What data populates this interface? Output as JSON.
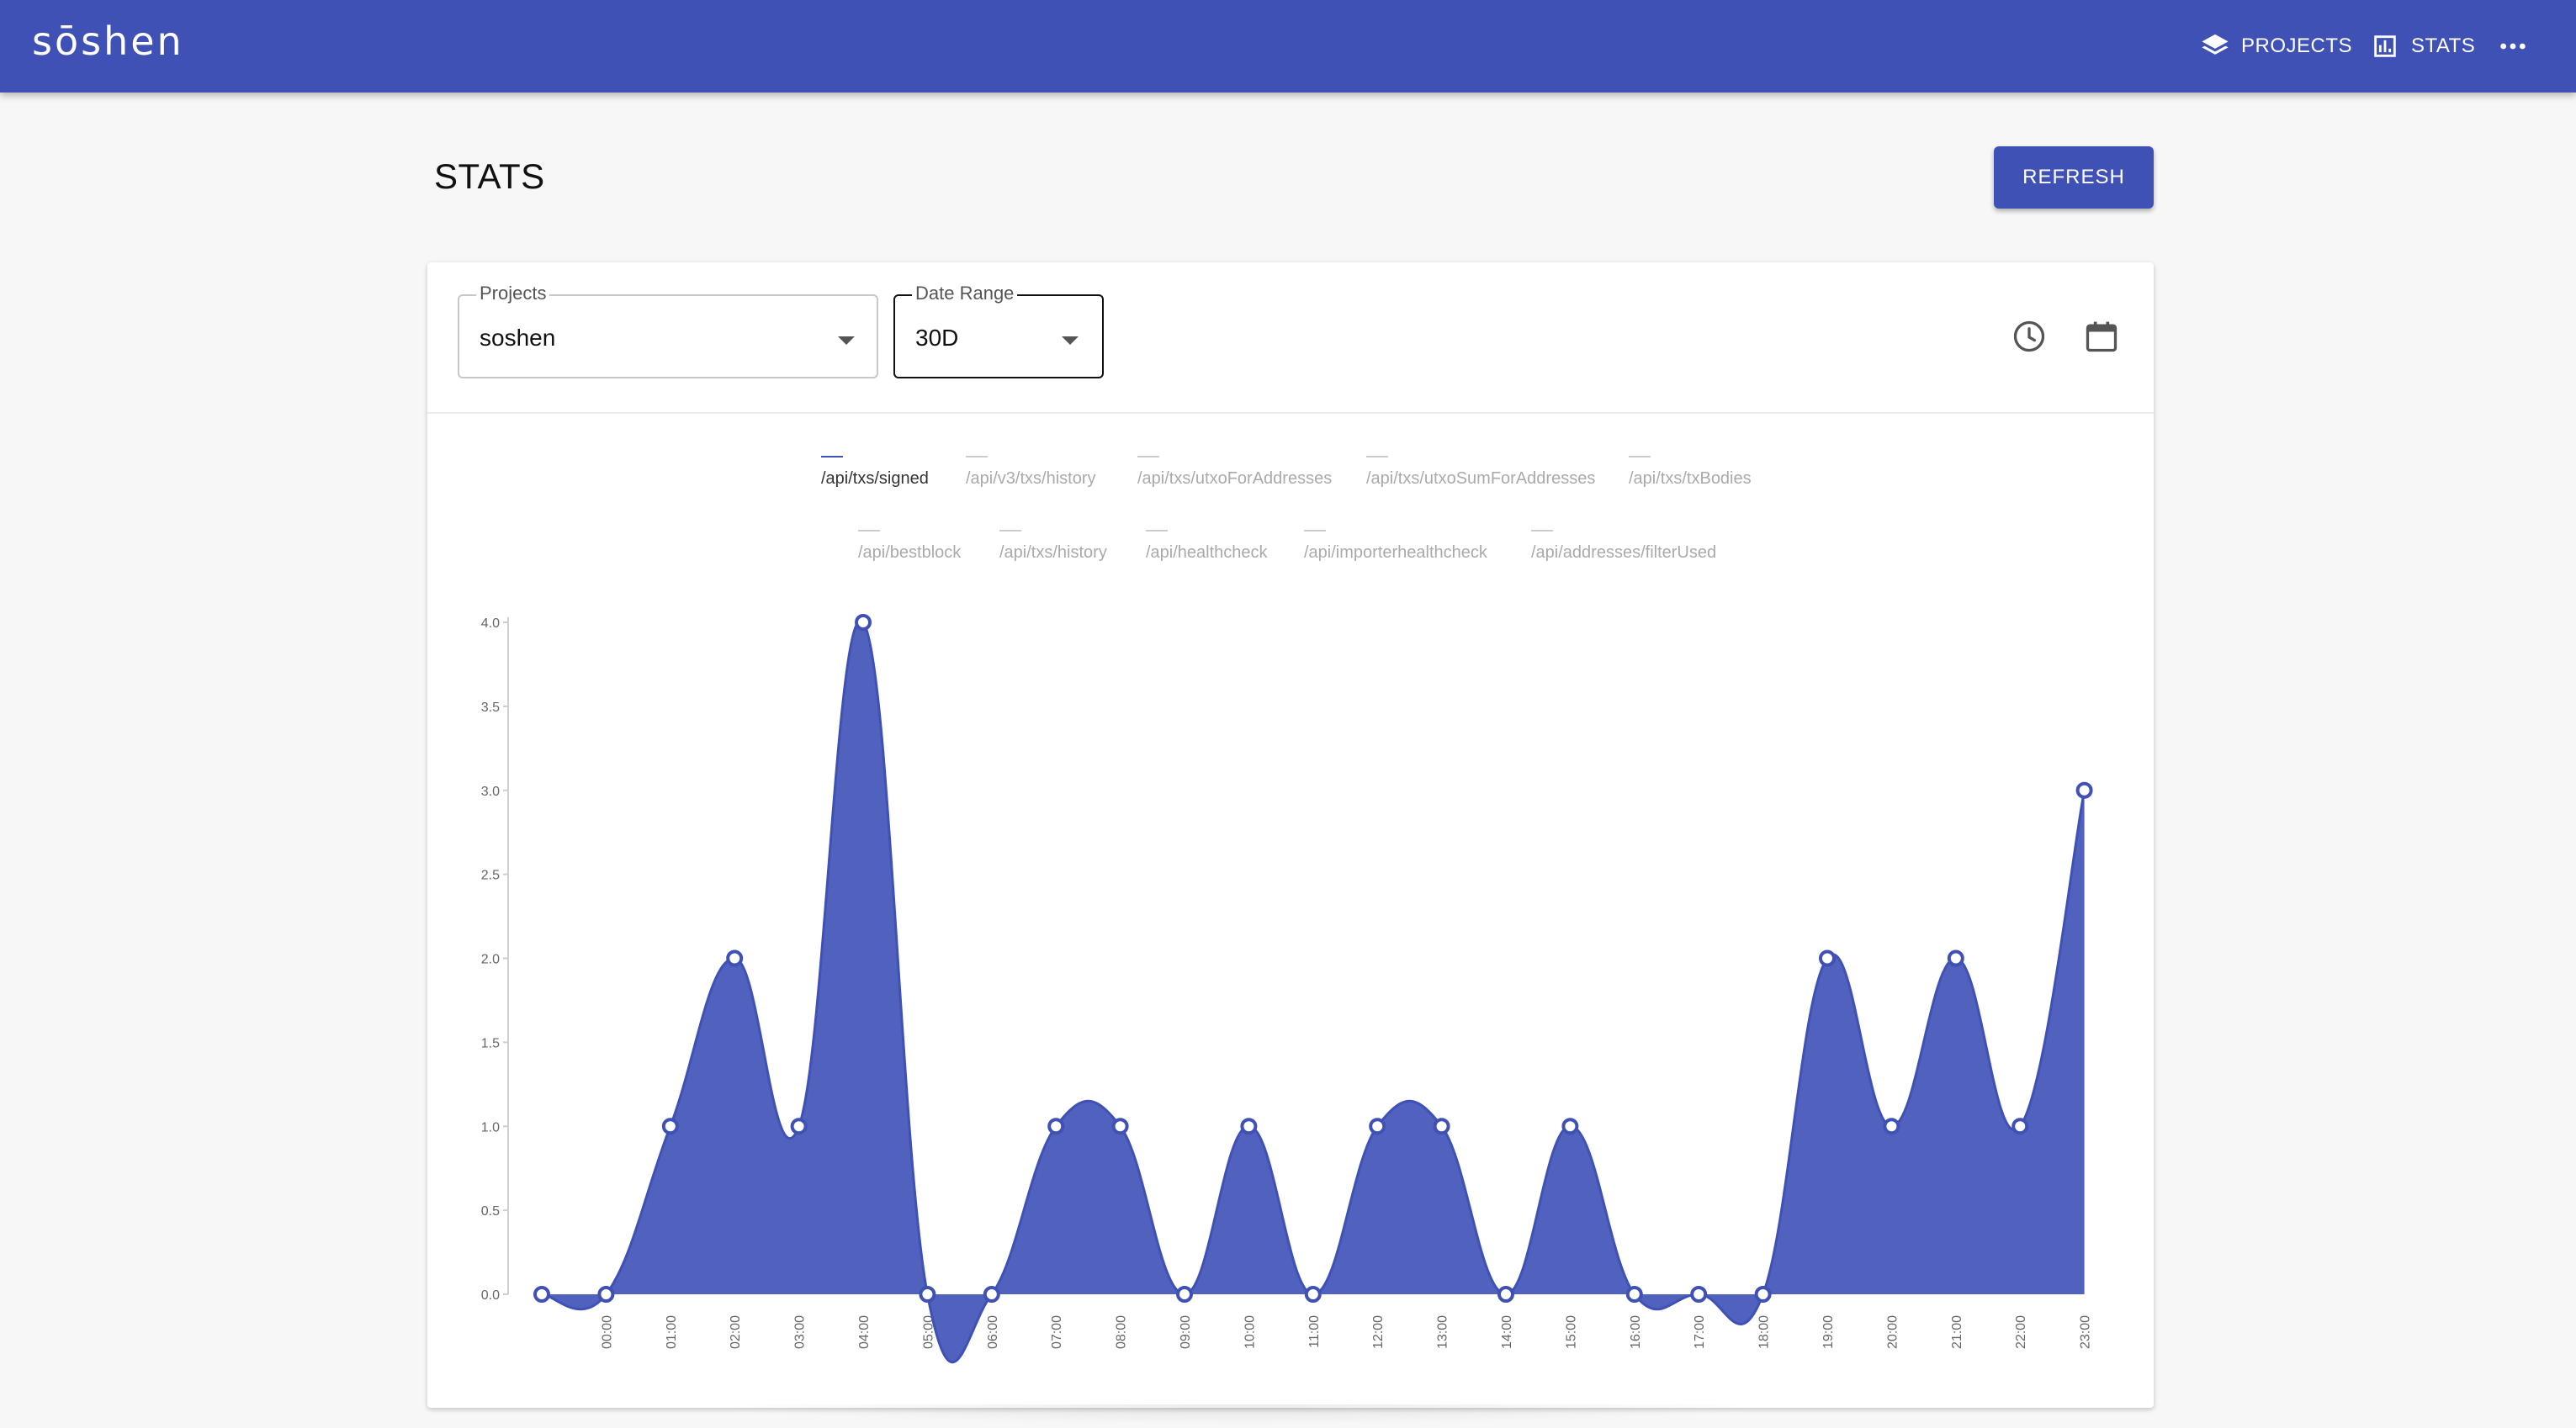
{
  "app": {
    "brand": "sōshen",
    "nav": [
      {
        "label": "PROJECTS",
        "icon": "layers-icon"
      },
      {
        "label": "STATS",
        "icon": "bar-chart-icon"
      }
    ],
    "more_icon": "more-horizontal-icon"
  },
  "page": {
    "title": "STATS",
    "refresh_label": "REFRESH"
  },
  "filters": {
    "projects": {
      "label": "Projects",
      "value": "soshen"
    },
    "date_range": {
      "label": "Date Range",
      "value": "30D"
    },
    "icons": [
      "clock-icon",
      "calendar-icon"
    ]
  },
  "legend": [
    {
      "label": "/api/txs/signed",
      "active": true
    },
    {
      "label": "/api/v3/txs/history",
      "active": false
    },
    {
      "label": "/api/txs/utxoForAddresses",
      "active": false
    },
    {
      "label": "/api/txs/utxoSumForAddresses",
      "active": false
    },
    {
      "label": "/api/txs/txBodies",
      "active": false
    },
    {
      "label": "/api/bestblock",
      "active": false
    },
    {
      "label": "/api/txs/history",
      "active": false
    },
    {
      "label": "/api/healthcheck",
      "active": false
    },
    {
      "label": "/api/importerhealthcheck",
      "active": false
    },
    {
      "label": "/api/addresses/filterUsed",
      "active": false
    }
  ],
  "chart_data": {
    "type": "area",
    "categories": [
      "",
      "00:00",
      "01:00",
      "02:00",
      "03:00",
      "04:00",
      "05:00",
      "06:00",
      "07:00",
      "08:00",
      "09:00",
      "10:00",
      "11:00",
      "12:00",
      "13:00",
      "14:00",
      "15:00",
      "16:00",
      "17:00",
      "18:00",
      "19:00",
      "20:00",
      "21:00",
      "22:00",
      "23:00"
    ],
    "series": [
      {
        "name": "/api/txs/signed",
        "values": [
          0,
          0,
          1,
          2,
          1,
          4,
          0,
          0,
          1,
          1,
          0,
          1,
          0,
          1,
          1,
          0,
          1,
          0,
          0,
          0,
          2,
          1,
          2,
          1,
          3
        ]
      }
    ],
    "yticks": [
      "0.0",
      "0.5",
      "1.0",
      "1.5",
      "2.0",
      "2.5",
      "3.0",
      "3.5",
      "4.0"
    ],
    "ylim": [
      0,
      4
    ],
    "color": "#3f51b5",
    "fill_color": "#5061be",
    "grid": false,
    "legend_position": "top-center"
  }
}
